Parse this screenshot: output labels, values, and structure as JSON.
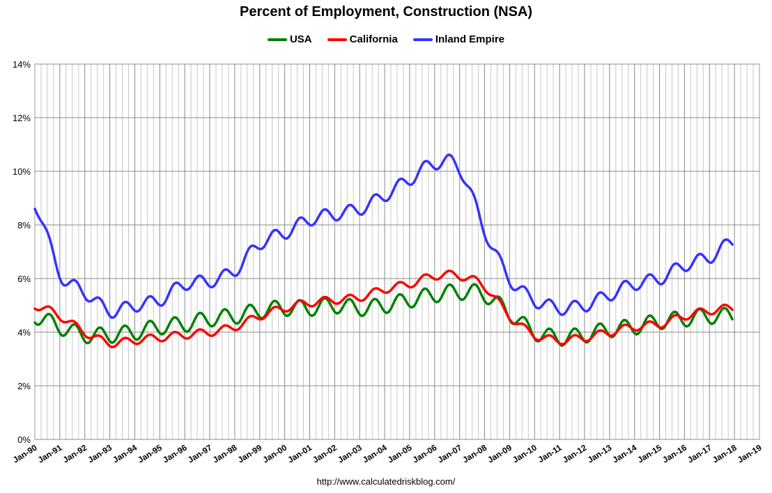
{
  "chart_data": {
    "type": "line",
    "title": "Percent of Employment, Construction (NSA)",
    "ylim": [
      0,
      14
    ],
    "yticks": [
      "0%",
      "2%",
      "4%",
      "6%",
      "8%",
      "10%",
      "12%",
      "14%"
    ],
    "ytick_values": [
      0,
      2,
      4,
      6,
      8,
      10,
      12,
      14
    ],
    "xticks": [
      "Jan-90",
      "Jan-91",
      "Jan-92",
      "Jan-93",
      "Jan-94",
      "Jan-95",
      "Jan-96",
      "Jan-97",
      "Jan-98",
      "Jan-99",
      "Jan-00",
      "Jan-01",
      "Jan-02",
      "Jan-03",
      "Jan-04",
      "Jan-05",
      "Jan-06",
      "Jan-07",
      "Jan-08",
      "Jan-09",
      "Jan-10",
      "Jan-11",
      "Jan-12",
      "Jan-13",
      "Jan-14",
      "Jan-15",
      "Jan-16",
      "Jan-17",
      "Jan-18",
      "Jan-19"
    ],
    "xlim": [
      1990,
      2019
    ],
    "x": [
      1990,
      1991,
      1992,
      1993,
      1994,
      1995,
      1996,
      1997,
      1998,
      1999,
      2000,
      2001,
      2002,
      2003,
      2004,
      2005,
      2006,
      2007,
      2008,
      2009,
      2010,
      2011,
      2012,
      2013,
      2014,
      2015,
      2016,
      2017,
      2018
    ],
    "grid": true,
    "seasonal_amplitude": {
      "USA": 0.3,
      "California": 0.15,
      "Inland Empire": 0.25
    },
    "series": [
      {
        "name": "USA",
        "color": "#008000",
        "values": [
          4.6,
          4.2,
          3.9,
          3.9,
          4.0,
          4.2,
          4.3,
          4.5,
          4.6,
          4.8,
          4.9,
          4.9,
          5.0,
          4.9,
          5.0,
          5.2,
          5.4,
          5.5,
          5.4,
          4.7,
          4.0,
          3.8,
          3.9,
          4.1,
          4.2,
          4.4,
          4.5,
          4.6,
          4.6
        ]
      },
      {
        "name": "California",
        "color": "#ff0000",
        "values": [
          5.0,
          4.6,
          4.0,
          3.6,
          3.7,
          3.8,
          3.9,
          4.0,
          4.2,
          4.6,
          4.9,
          5.1,
          5.2,
          5.3,
          5.6,
          5.8,
          6.1,
          6.1,
          5.7,
          4.6,
          3.9,
          3.7,
          3.8,
          4.0,
          4.2,
          4.3,
          4.6,
          4.8,
          4.9
        ]
      },
      {
        "name": "Inland Empire",
        "color": "#3333ff",
        "values": [
          8.8,
          6.2,
          5.5,
          4.8,
          5.0,
          5.2,
          5.8,
          5.9,
          6.3,
          7.3,
          7.7,
          8.2,
          8.4,
          8.6,
          9.1,
          9.7,
          10.3,
          10.1,
          7.8,
          6.0,
          5.2,
          4.9,
          5.0,
          5.4,
          5.8,
          6.0,
          6.5,
          6.8,
          7.4
        ]
      }
    ],
    "source": "http://www.calculatedriskblog.com/"
  }
}
